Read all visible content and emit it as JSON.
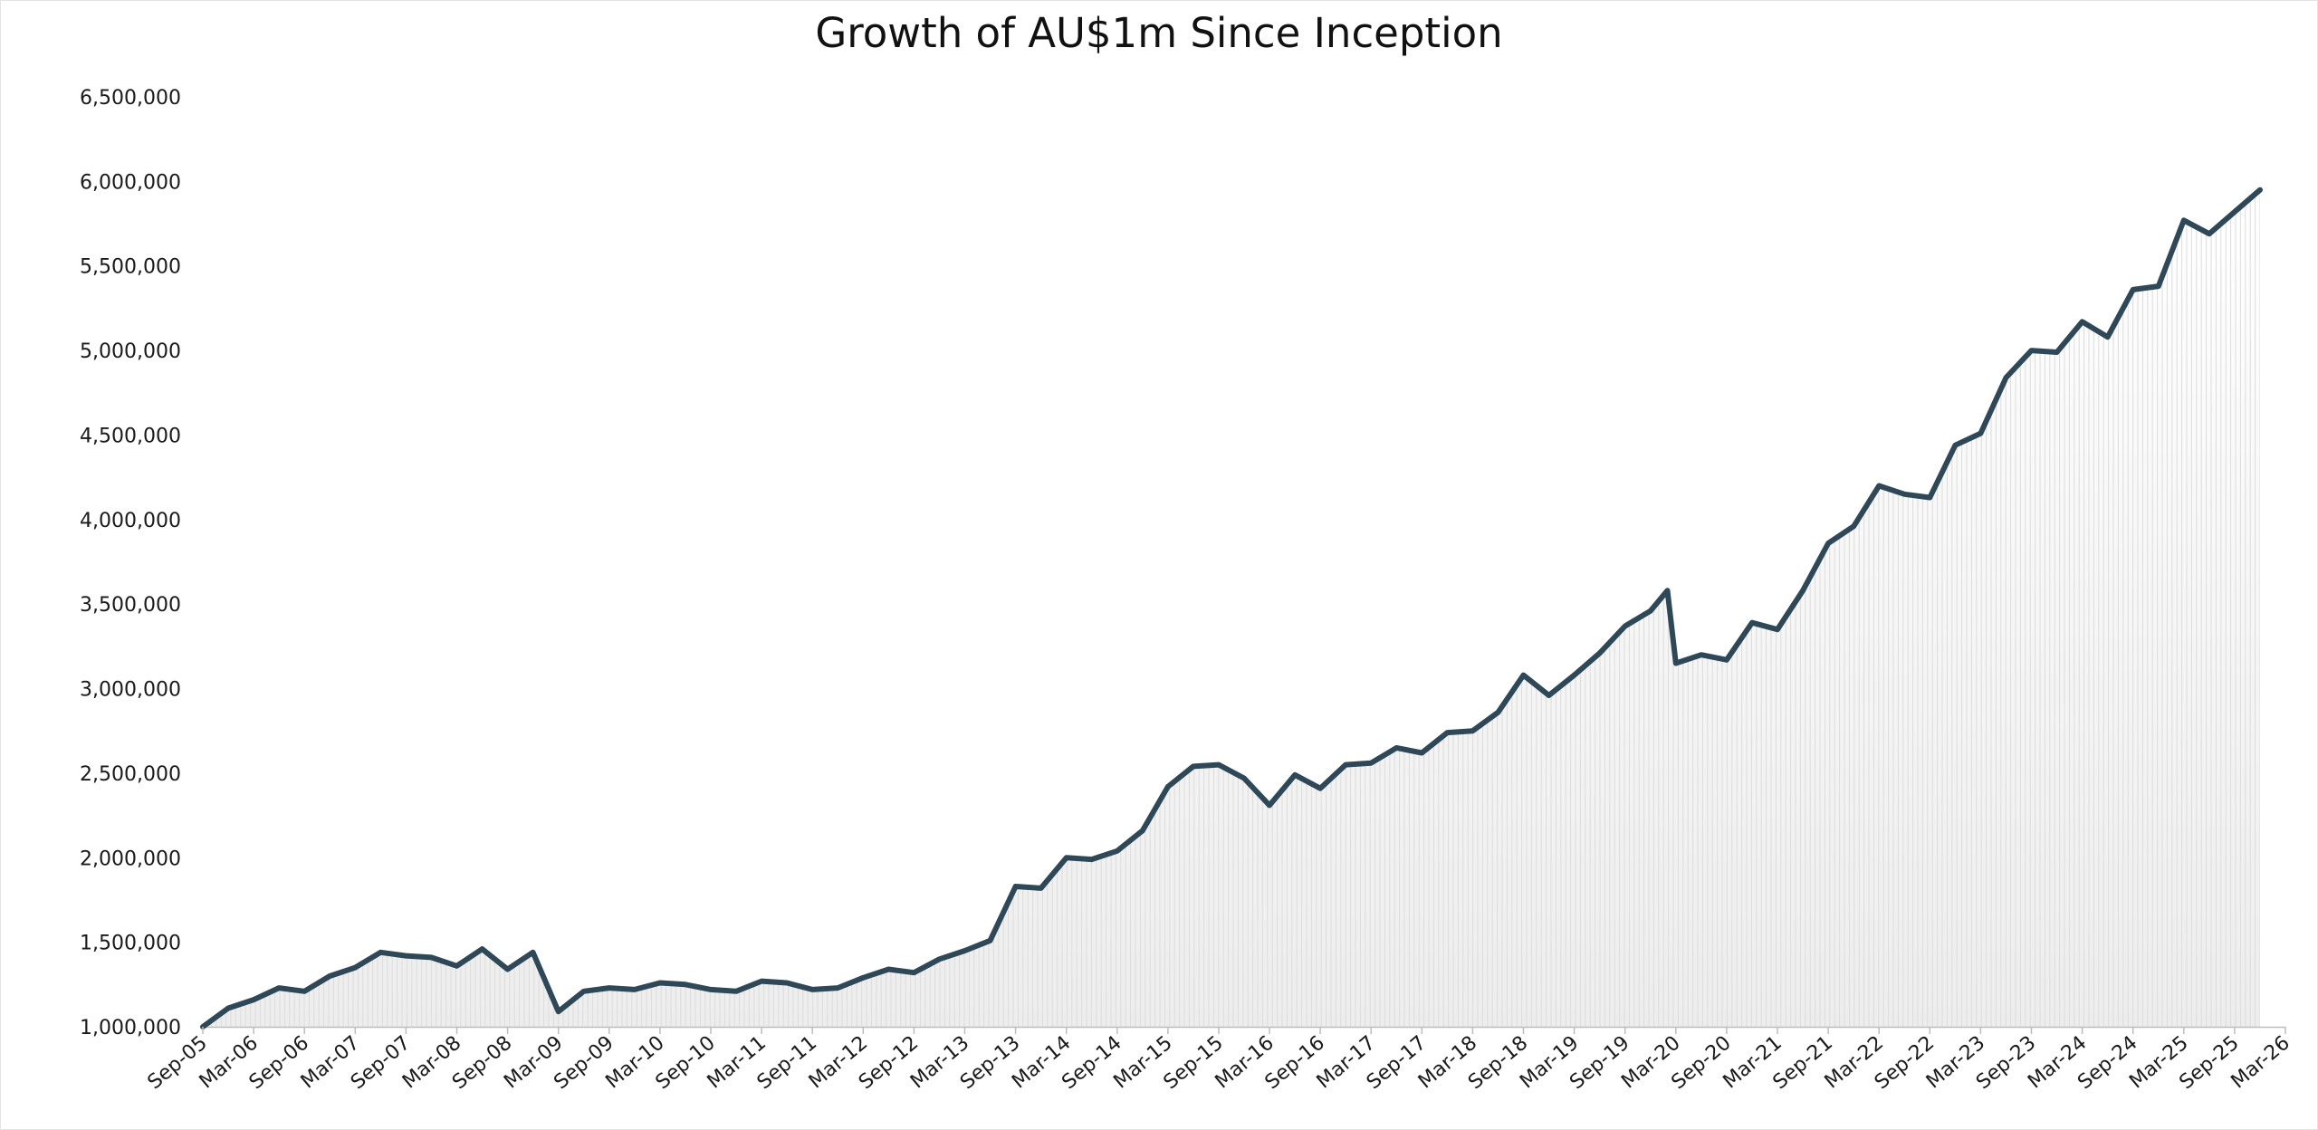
{
  "colors": {
    "line": "#2f4858",
    "area_top": "#ffffff",
    "area_bottom": "#ededed",
    "hatch": "#dcdcdc"
  },
  "chart_data": {
    "type": "line",
    "title": "Growth of AU$1m Since Inception",
    "xlabel": "",
    "ylabel": "",
    "ylim": [
      1000000,
      6500000
    ],
    "y_ticks": [
      1000000,
      1500000,
      2000000,
      2500000,
      3000000,
      3500000,
      4000000,
      4500000,
      5000000,
      5500000,
      6000000,
      6500000
    ],
    "y_tick_labels": [
      "1,000,000",
      "1,500,000",
      "2,000,000",
      "2,500,000",
      "3,000,000",
      "3,500,000",
      "4,000,000",
      "4,500,000",
      "5,000,000",
      "5,500,000",
      "6,000,000",
      "6,500,000"
    ],
    "x_tick_labels": [
      "Sep-05",
      "Mar-06",
      "Sep-06",
      "Mar-07",
      "Sep-07",
      "Mar-08",
      "Sep-08",
      "Mar-09",
      "Sep-09",
      "Mar-10",
      "Sep-10",
      "Mar-11",
      "Sep-11",
      "Mar-12",
      "Sep-12",
      "Mar-13",
      "Sep-13",
      "Mar-14",
      "Sep-14",
      "Mar-15",
      "Sep-15",
      "Mar-16",
      "Sep-16",
      "Mar-17",
      "Sep-17",
      "Mar-18",
      "Sep-18",
      "Mar-19",
      "Sep-19",
      "Mar-20",
      "Sep-20",
      "Mar-21",
      "Sep-21",
      "Mar-22",
      "Sep-22",
      "Mar-23",
      "Sep-23",
      "Mar-24",
      "Sep-24",
      "Mar-25",
      "Sep-25",
      "Mar-26"
    ],
    "grid": false,
    "legend": "none",
    "fill_under_line": true,
    "series": [
      {
        "x": [
          "Sep-05",
          "Dec-05",
          "Mar-06",
          "Jun-06",
          "Sep-06",
          "Dec-06",
          "Mar-07",
          "Jun-07",
          "Sep-07",
          "Dec-07",
          "Mar-08",
          "Jun-08",
          "Sep-08",
          "Dec-08",
          "Mar-09",
          "Jun-09",
          "Sep-09",
          "Dec-09",
          "Mar-10",
          "Jun-10",
          "Sep-10",
          "Dec-10",
          "Mar-11",
          "Jun-11",
          "Sep-11",
          "Dec-11",
          "Mar-12",
          "Jun-12",
          "Sep-12",
          "Dec-12",
          "Mar-13",
          "Jun-13",
          "Sep-13",
          "Dec-13",
          "Mar-14",
          "Jun-14",
          "Sep-14",
          "Dec-14",
          "Mar-15",
          "Jun-15",
          "Sep-15",
          "Dec-15",
          "Mar-16",
          "Jun-16",
          "Sep-16",
          "Dec-16",
          "Mar-17",
          "Jun-17",
          "Sep-17",
          "Dec-17",
          "Mar-18",
          "Jun-18",
          "Sep-18",
          "Dec-18",
          "Mar-19",
          "Jun-19",
          "Sep-19",
          "Dec-19",
          "Feb-20",
          "Mar-20",
          "Jun-20",
          "Sep-20",
          "Dec-20",
          "Mar-21",
          "Jun-21",
          "Sep-21",
          "Dec-21",
          "Mar-22",
          "Jun-22",
          "Sep-22",
          "Dec-22",
          "Mar-23",
          "Jun-23",
          "Sep-23",
          "Dec-23",
          "Mar-24",
          "Jun-24",
          "Sep-24",
          "Dec-24",
          "Mar-25",
          "Jun-25",
          "Dec-25"
        ],
        "values": [
          1000000,
          1110000,
          1160000,
          1230000,
          1210000,
          1300000,
          1350000,
          1440000,
          1420000,
          1410000,
          1360000,
          1460000,
          1340000,
          1440000,
          1090000,
          1210000,
          1230000,
          1220000,
          1260000,
          1250000,
          1220000,
          1210000,
          1270000,
          1260000,
          1220000,
          1230000,
          1290000,
          1340000,
          1320000,
          1400000,
          1450000,
          1510000,
          1830000,
          1820000,
          2000000,
          1990000,
          2040000,
          2160000,
          2420000,
          2540000,
          2550000,
          2470000,
          2310000,
          2490000,
          2410000,
          2550000,
          2560000,
          2650000,
          2620000,
          2740000,
          2750000,
          2860000,
          3080000,
          2960000,
          3080000,
          3210000,
          3370000,
          3460000,
          3580000,
          3150000,
          3200000,
          3170000,
          3390000,
          3350000,
          3580000,
          3860000,
          3960000,
          4200000,
          4150000,
          4130000,
          4440000,
          4510000,
          4840000,
          5000000,
          4990000,
          5170000,
          5080000,
          5360000,
          5380000,
          5770000,
          5690000,
          5950000
        ]
      }
    ]
  }
}
